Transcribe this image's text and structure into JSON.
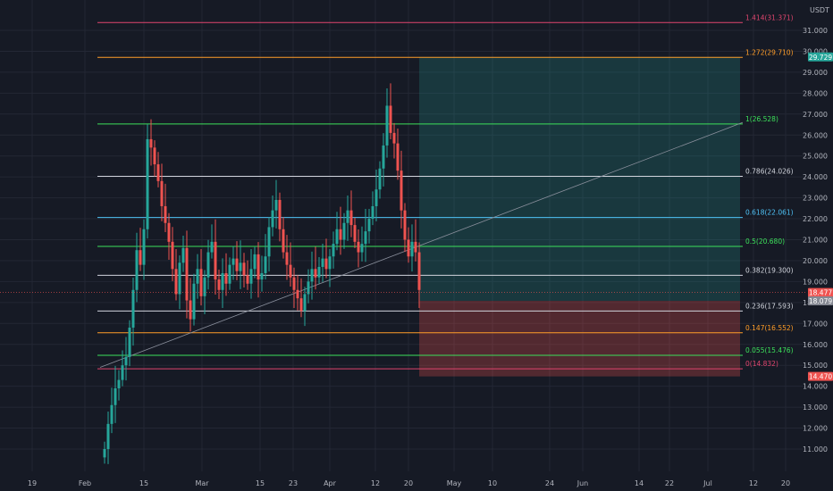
{
  "currency_label": "USDT",
  "colors": {
    "background": "#161a25",
    "grid": "#232734",
    "up": "#26a69a",
    "down": "#ef5350",
    "profit_zone": "rgba(38,166,154,0.22)",
    "loss_zone": "rgba(239,83,80,0.28)",
    "trendline": "#8a8f9c"
  },
  "price_axis": {
    "ticks": [
      "31.000",
      "30.000",
      "29.000",
      "28.000",
      "27.000",
      "26.000",
      "25.000",
      "24.000",
      "23.000",
      "22.000",
      "21.000",
      "20.000",
      "19.000",
      "18.000",
      "17.000",
      "16.000",
      "15.000",
      "14.000",
      "13.000",
      "12.000",
      "11.000"
    ]
  },
  "time_axis": {
    "ticks": [
      "19",
      "Feb",
      "15",
      "Mar",
      "15",
      "23",
      "Apr",
      "12",
      "20",
      "May",
      "10",
      "24",
      "Jun",
      "14",
      "22",
      "Jul",
      "12",
      "20"
    ]
  },
  "fib_levels": [
    {
      "label": "1.414(31.371)",
      "price": 31.371,
      "color": "#e0456e"
    },
    {
      "label": "1.272(29.710)",
      "price": 29.71,
      "color": "#ff9d28"
    },
    {
      "label": "1(26.528)",
      "price": 26.528,
      "color": "#3ce05a"
    },
    {
      "label": "0.786(24.026)",
      "price": 24.026,
      "color": "#d1d4dc"
    },
    {
      "label": "0.618(22.061)",
      "price": 22.061,
      "color": "#4fc3f7"
    },
    {
      "label": "0.5(20.680)",
      "price": 20.68,
      "color": "#3ce05a"
    },
    {
      "label": "0.382(19.300)",
      "price": 19.3,
      "color": "#d1d4dc"
    },
    {
      "label": "0.236(17.593)",
      "price": 17.593,
      "color": "#d1d4dc"
    },
    {
      "label": "0.147(16.552)",
      "price": 16.552,
      "color": "#ff9d28"
    },
    {
      "label": "0.055(15.476)",
      "price": 15.476,
      "color": "#3ce05a"
    },
    {
      "label": "0(14.832)",
      "price": 14.832,
      "color": "#e0456e"
    }
  ],
  "price_tags": [
    {
      "label": "29.729",
      "price": 29.73,
      "color": "#26a69a"
    },
    {
      "label": "18.477",
      "price": 18.48,
      "color": "#ef5350"
    },
    {
      "label": "18.079",
      "price": 18.08,
      "color": "#868993"
    },
    {
      "label": "14.470",
      "price": 14.47,
      "color": "#ef5350"
    }
  ],
  "position": {
    "target": 29.73,
    "entry": 18.08,
    "stop": 14.47
  }
}
